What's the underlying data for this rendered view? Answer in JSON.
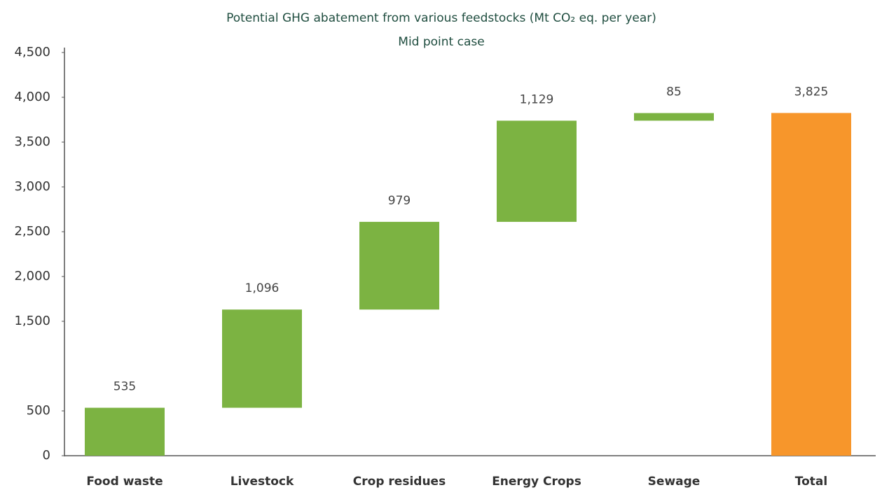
{
  "chart_data": {
    "type": "waterfall",
    "title": "Potential GHG abatement from various feedstocks (Mt CO₂ eq. per year)",
    "subtitle": "Mid point case",
    "categories": [
      "Food waste",
      "Livestock",
      "Crop residues",
      "Energy Crops",
      "Sewage",
      "Total"
    ],
    "values": [
      535,
      1096,
      979,
      1129,
      85,
      3825
    ],
    "value_labels": [
      "535",
      "1,096",
      "979",
      "1,129",
      "85",
      "3,825"
    ],
    "colors": [
      "#7cb342",
      "#7cb342",
      "#7cb342",
      "#7cb342",
      "#7cb342",
      "#f7962b"
    ],
    "ylim": [
      0,
      4500
    ],
    "yticks": [
      0,
      500,
      {
        "value": 1500,
        "label": "1,500"
      },
      {
        "value": 2000,
        "label": "2,000"
      },
      {
        "value": 2500,
        "label": "2,500"
      },
      {
        "value": 3000,
        "label": "3,000"
      },
      {
        "value": 3500,
        "label": "3,500"
      },
      {
        "value": 4000,
        "label": "4,000"
      },
      {
        "value": 4500,
        "label": "4,500"
      }
    ],
    "grid": false
  }
}
